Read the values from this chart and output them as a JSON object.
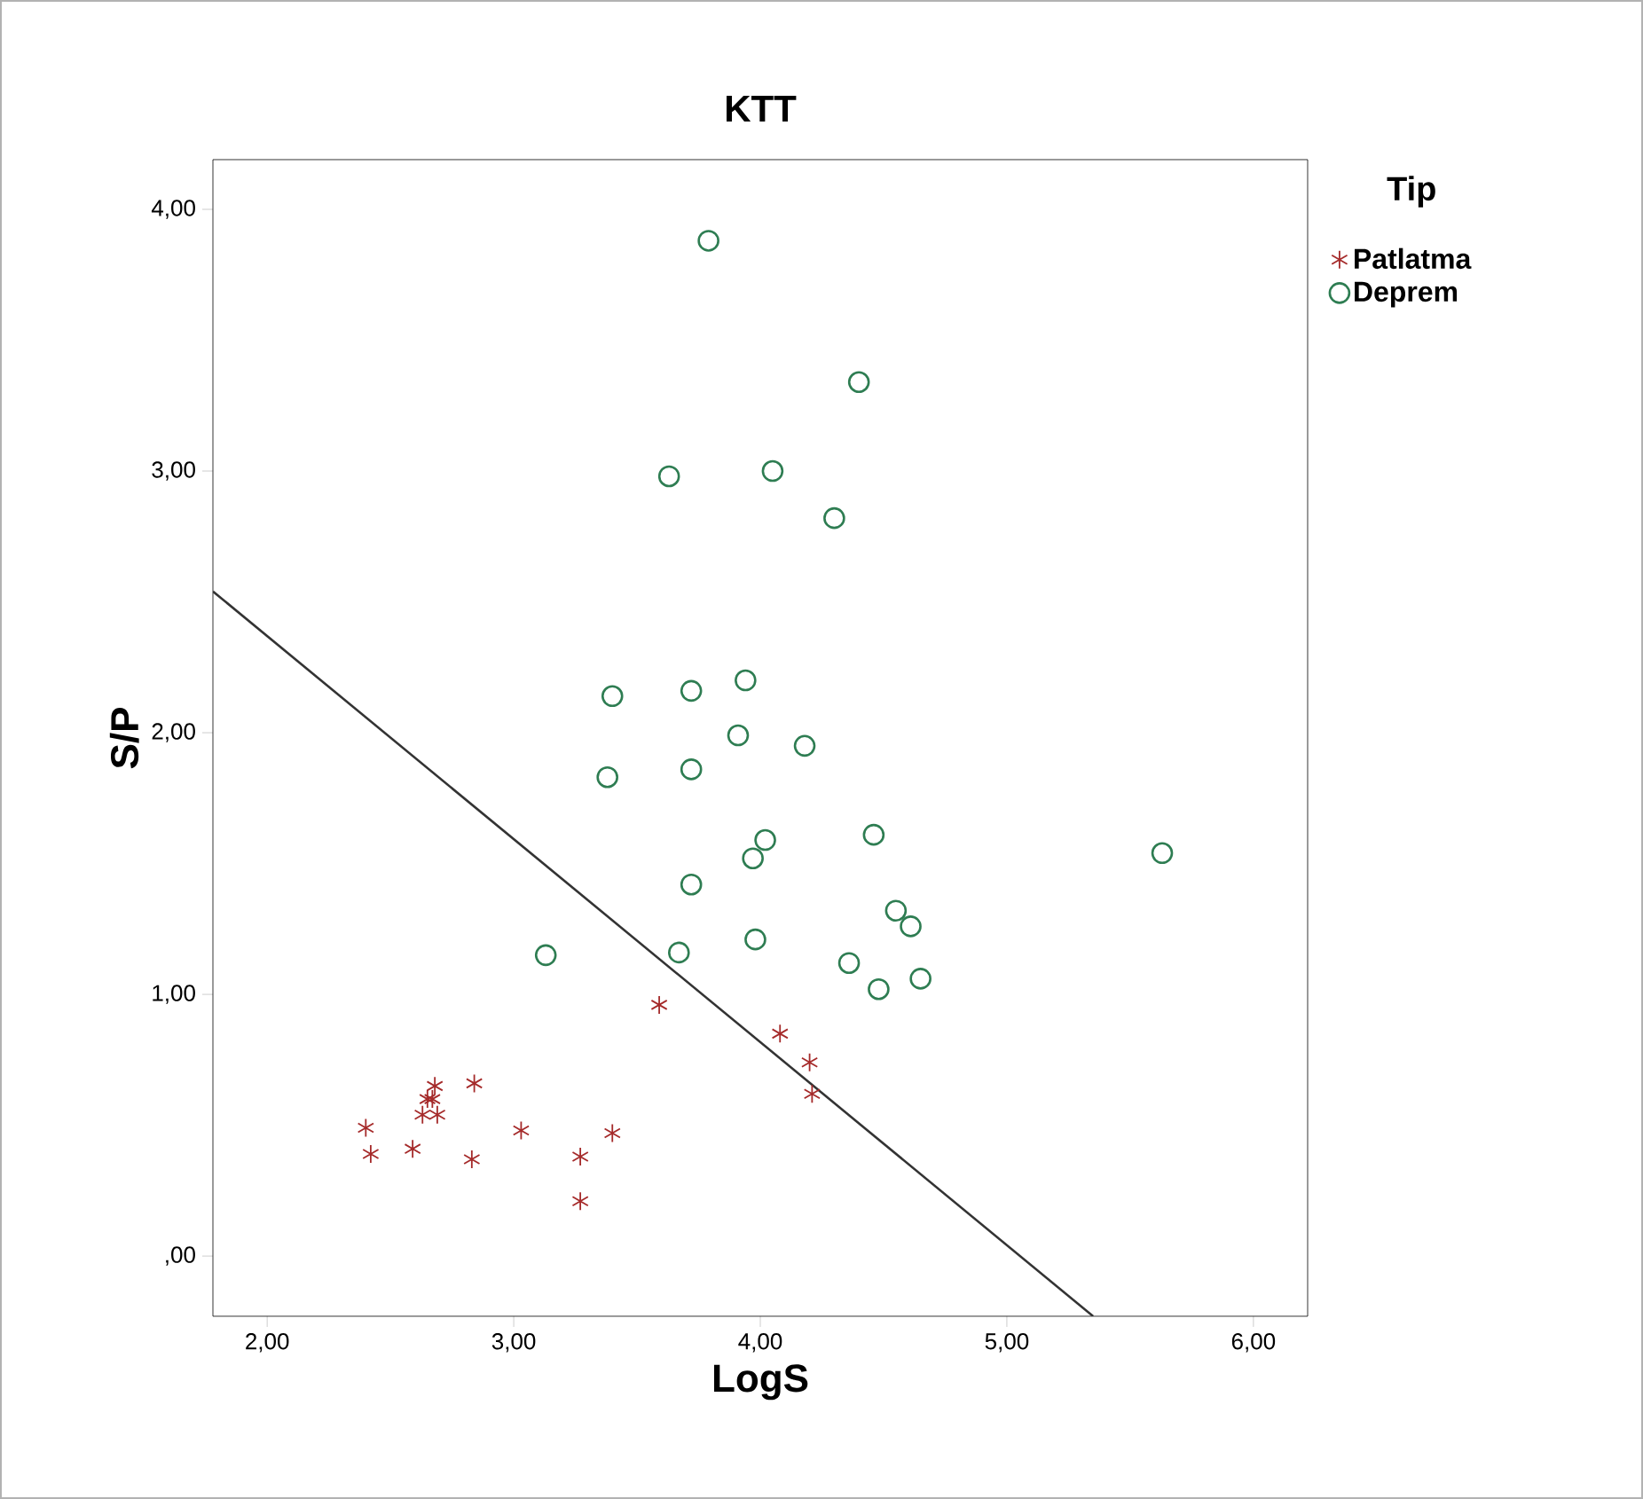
{
  "chart_data": {
    "type": "scatter",
    "title": "KTT",
    "xlabel": "LogS",
    "ylabel": "S/P",
    "legend_title": "Tip",
    "legend": "right",
    "xlim": [
      1.78,
      6.22
    ],
    "ylim": [
      -0.23,
      4.19
    ],
    "xticks": [
      {
        "value": 2,
        "label": "2,00"
      },
      {
        "value": 3,
        "label": "3,00"
      },
      {
        "value": 4,
        "label": "4,00"
      },
      {
        "value": 5,
        "label": "5,00"
      },
      {
        "value": 6,
        "label": "6,00"
      }
    ],
    "yticks": [
      {
        "value": 0,
        "label": ",00"
      },
      {
        "value": 1,
        "label": "1,00"
      },
      {
        "value": 2,
        "label": "2,00"
      },
      {
        "value": 3,
        "label": "3,00"
      },
      {
        "value": 4,
        "label": "4,00"
      }
    ],
    "series": [
      {
        "name": "Patlatma",
        "marker": "cross",
        "color": "#a52a2a",
        "x": [
          3.59,
          4.08,
          4.2,
          4.21,
          2.4,
          2.42,
          2.59,
          2.84,
          2.83,
          3.03,
          3.27,
          3.27,
          3.4,
          2.68,
          2.65,
          2.63,
          2.69,
          2.67
        ],
        "values": [
          0.96,
          0.85,
          0.74,
          0.62,
          0.49,
          0.39,
          0.41,
          0.66,
          0.37,
          0.48,
          0.38,
          0.21,
          0.47,
          0.65,
          0.6,
          0.54,
          0.54,
          0.6
        ]
      },
      {
        "name": "Deprem",
        "marker": "circle",
        "color": "#2e7d52",
        "x": [
          3.79,
          4.4,
          3.63,
          4.05,
          4.3,
          3.4,
          3.72,
          3.94,
          3.91,
          4.18,
          3.38,
          3.72,
          4.02,
          3.97,
          4.46,
          5.63,
          3.72,
          4.55,
          4.61,
          3.13,
          3.67,
          3.98,
          4.36,
          4.48,
          4.65
        ],
        "values": [
          3.88,
          3.34,
          2.98,
          3.0,
          2.82,
          2.14,
          2.16,
          2.2,
          1.99,
          1.95,
          1.83,
          1.86,
          1.59,
          1.52,
          1.61,
          1.54,
          1.42,
          1.32,
          1.26,
          1.15,
          1.16,
          1.21,
          1.12,
          1.02,
          1.06
        ]
      },
      {
        "type": "line",
        "marker": "none",
        "line_style": "solid",
        "color": "#333333",
        "x": [
          1.78,
          5.35
        ],
        "values": [
          2.54,
          -0.23
        ]
      }
    ]
  }
}
